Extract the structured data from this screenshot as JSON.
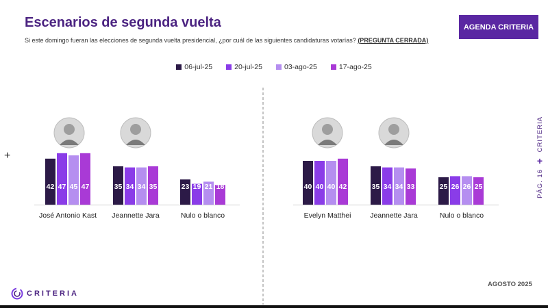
{
  "header": {
    "title": "Escenarios de segunda vuelta",
    "subtitle_text": "Si este domingo fueran las elecciones de segunda vuelta presidencial, ¿por cuál de las siguientes candidaturas votarías?",
    "subtitle_tag": "(PREGUNTA CERRADA)",
    "agenda_button": "AGENDA CRITERIA"
  },
  "side": {
    "brand": "CRITERIA",
    "page": "PÁG. 16"
  },
  "footer": {
    "date": "AGOSTO 2025",
    "logo": "CRITERIA"
  },
  "colors": {
    "title": "#4b2381",
    "series": [
      "#2c1a47",
      "#8a3ce8",
      "#b58ef0",
      "#a93ad6"
    ]
  },
  "chart_data": [
    {
      "type": "bar",
      "categories": [
        "José Antonio Kast",
        "Jeannette Jara",
        "Nulo o blanco"
      ],
      "series": [
        {
          "name": "06-jul-25",
          "values": [
            42,
            35,
            23
          ]
        },
        {
          "name": "20-jul-25",
          "values": [
            47,
            34,
            19
          ]
        },
        {
          "name": "03-ago-25",
          "values": [
            45,
            34,
            21
          ]
        },
        {
          "name": "17-ago-25",
          "values": [
            47,
            35,
            18
          ]
        }
      ],
      "ylim": [
        0,
        50
      ]
    },
    {
      "type": "bar",
      "categories": [
        "Evelyn Matthei",
        "Jeannette Jara",
        "Nulo o blanco"
      ],
      "series": [
        {
          "name": "06-jul-25",
          "values": [
            40,
            35,
            25
          ]
        },
        {
          "name": "20-jul-25",
          "values": [
            40,
            34,
            26
          ]
        },
        {
          "name": "03-ago-25",
          "values": [
            40,
            34,
            26
          ]
        },
        {
          "name": "17-ago-25",
          "values": [
            42,
            33,
            25
          ]
        }
      ],
      "ylim": [
        0,
        50
      ]
    }
  ]
}
